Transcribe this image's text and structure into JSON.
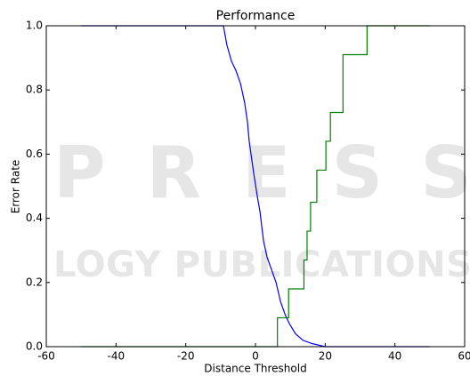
{
  "chart_data": {
    "type": "line",
    "title": "Performance",
    "xlabel": "Distance Threshold",
    "ylabel": "Error Rate",
    "watermark": [
      "PRESS",
      "LOGY PUBLICATIONS"
    ],
    "xlim": [
      -60,
      60
    ],
    "xticks": [
      -60,
      -40,
      -20,
      0,
      20,
      40,
      60
    ],
    "ylim": [
      0,
      1
    ],
    "yticks": [
      {
        "value": 0,
        "label": "0.0"
      },
      0.2,
      0.4,
      0.6,
      0.8,
      {
        "value": 1,
        "label": "1.0"
      }
    ],
    "series": [
      {
        "color": "#0000ff",
        "x": [
          -50,
          -9.2,
          -8.2,
          -6.9,
          -5.6,
          -4.3,
          -3.1,
          -2.3,
          -1.8,
          -0.5,
          0.5,
          1.3,
          2.3,
          3.3,
          4.6,
          5.9,
          7.2,
          8.5,
          9.8,
          11.5,
          13.6,
          16.1,
          20,
          50
        ],
        "values": [
          1,
          1,
          0.94,
          0.89,
          0.86,
          0.82,
          0.76,
          0.7,
          0.64,
          0.54,
          0.47,
          0.42,
          0.33,
          0.28,
          0.24,
          0.2,
          0.14,
          0.1,
          0.07,
          0.04,
          0.02,
          0.01,
          0,
          0
        ]
      },
      {
        "color": "#008000",
        "x": [
          -50,
          6.3,
          6.3,
          9.5,
          9.5,
          13.9,
          13.9,
          14.8,
          14.8,
          15.8,
          15.8,
          17.6,
          17.6,
          20.2,
          20.2,
          21.5,
          21.5,
          25.1,
          25.1,
          32,
          32,
          50
        ],
        "values": [
          0,
          0,
          0.09,
          0.09,
          0.18,
          0.18,
          0.27,
          0.27,
          0.36,
          0.36,
          0.45,
          0.45,
          0.55,
          0.55,
          0.64,
          0.64,
          0.73,
          0.73,
          0.91,
          0.91,
          1,
          1
        ]
      }
    ]
  }
}
